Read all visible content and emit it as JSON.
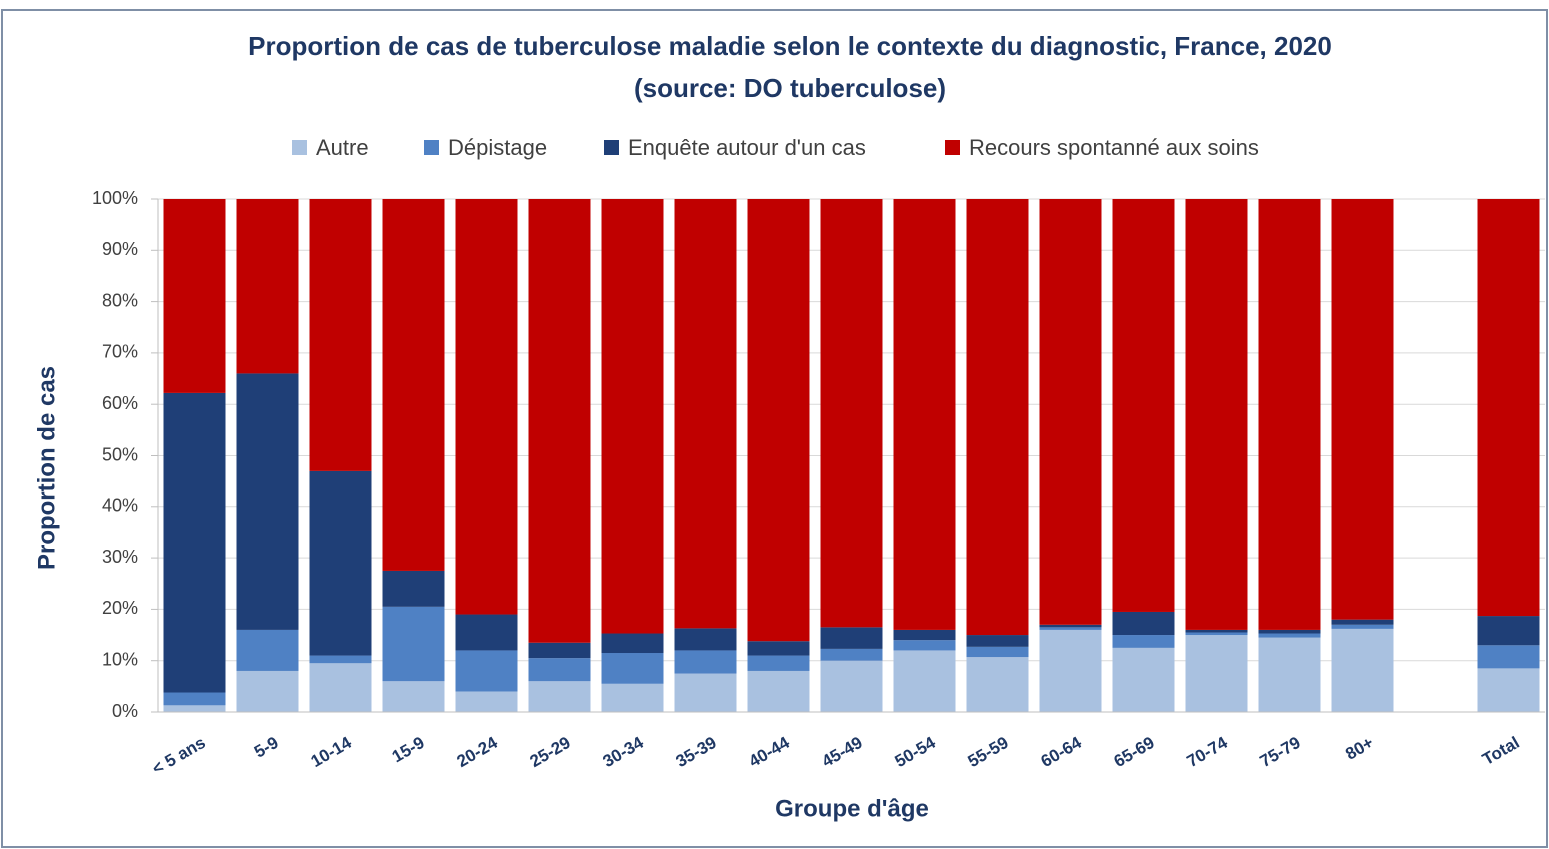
{
  "chart_data": {
    "type": "stacked_bar",
    "title": "Proportion de cas de tuberculose maladie selon le contexte du diagnostic, France, 2020",
    "subtitle": "(source: DO tuberculose)",
    "x_label": "Groupe d'âge",
    "y_label": "Proportion de cas",
    "categories": [
      "< 5 ans",
      "5-9",
      "10-14",
      "15-9",
      "20-24",
      "25-29",
      "30-34",
      "35-39",
      "40-44",
      "45-49",
      "50-54",
      "55-59",
      "60-64",
      "65-69",
      "70-74",
      "75-79",
      "80+",
      null,
      "Total"
    ],
    "series": [
      {
        "name": "Autre",
        "color": "#a9c1e0",
        "values": [
          1.3,
          8,
          9.5,
          6,
          4,
          6,
          5.5,
          7.5,
          8,
          10,
          12,
          10.7,
          16,
          12.5,
          15,
          14.5,
          16.2,
          null,
          8.5
        ]
      },
      {
        "name": "Dépistage",
        "color": "#4f81c4",
        "values": [
          2.5,
          8,
          1.5,
          14.5,
          8,
          4.5,
          6,
          4.5,
          3,
          2.3,
          2,
          2,
          0.5,
          2.5,
          0.5,
          0.8,
          0.8,
          null,
          4.5
        ]
      },
      {
        "name": "Enquête autour d'un cas",
        "color": "#1f3f77",
        "values": [
          58.4,
          50,
          36,
          7,
          7,
          3,
          3.8,
          4.3,
          2.8,
          4.2,
          2,
          2.3,
          0.5,
          4.5,
          0.5,
          0.7,
          1,
          null,
          5.7
        ]
      },
      {
        "name": "Recours spontanné aux soins",
        "color": "#c00000",
        "values": [
          37.8,
          34,
          53,
          72.5,
          81,
          86.5,
          84.7,
          83.7,
          86.2,
          83.5,
          84,
          85,
          83,
          80.5,
          84,
          84,
          82,
          null,
          81.3
        ]
      }
    ],
    "ylim": [
      0,
      100
    ],
    "yticks": [
      {
        "value": 0,
        "label": "0%"
      },
      {
        "value": 10,
        "label": "10%"
      },
      {
        "value": 20,
        "label": "20%"
      },
      {
        "value": 30,
        "label": "30%"
      },
      {
        "value": 40,
        "label": "40%"
      },
      {
        "value": 50,
        "label": "50%"
      },
      {
        "value": 60,
        "label": "60%"
      },
      {
        "value": 70,
        "label": "70%"
      },
      {
        "value": 80,
        "label": "80%"
      },
      {
        "value": 90,
        "label": "90%"
      },
      {
        "value": 100,
        "label": "100%"
      }
    ],
    "grid": true,
    "legend": "top"
  }
}
